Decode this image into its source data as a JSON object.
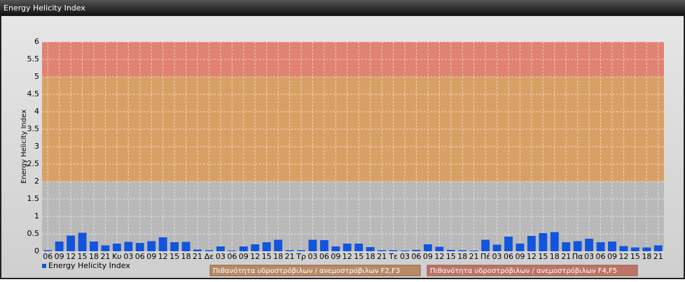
{
  "header": {
    "title": "Energy Helicity Index"
  },
  "chart_data": {
    "type": "bar",
    "y_label": "Energy Helicity Index",
    "categories": [
      "06",
      "09",
      "12",
      "15",
      "18",
      "21",
      "Κυ",
      "03",
      "06",
      "09",
      "12",
      "15",
      "18",
      "21",
      "Δε",
      "03",
      "06",
      "09",
      "12",
      "15",
      "18",
      "21",
      "Τρ",
      "03",
      "06",
      "09",
      "12",
      "15",
      "18",
      "21",
      "Τε",
      "03",
      "06",
      "09",
      "12",
      "15",
      "18",
      "21",
      "Πέ",
      "03",
      "06",
      "09",
      "12",
      "15",
      "18",
      "21",
      "Πα",
      "03",
      "06",
      "09",
      "12",
      "15",
      "18",
      "21"
    ],
    "series": [
      {
        "name": "Energy Helicity Index",
        "color": "#1155dd",
        "values": [
          0.03,
          0.28,
          0.45,
          0.53,
          0.28,
          0.17,
          0.22,
          0.27,
          0.24,
          0.29,
          0.4,
          0.26,
          0.27,
          0.05,
          0.03,
          0.14,
          0.02,
          0.14,
          0.2,
          0.26,
          0.33,
          0.03,
          0.03,
          0.33,
          0.32,
          0.14,
          0.22,
          0.22,
          0.12,
          0.03,
          0.03,
          0.02,
          0.04,
          0.2,
          0.13,
          0.04,
          0.03,
          0.02,
          0.33,
          0.19,
          0.42,
          0.22,
          0.44,
          0.52,
          0.55,
          0.26,
          0.29,
          0.36,
          0.26,
          0.28,
          0.15,
          0.11,
          0.11,
          0.17
        ]
      }
    ],
    "bands": [
      {
        "from": 0,
        "to": 2,
        "color": "#b9b9b9"
      },
      {
        "from": 2,
        "to": 5,
        "color": "#d9a066",
        "name": "Πιθανότητα υδροστρόβιλων / ανεμοστρόβιλων F2,F3",
        "legend_color": "#b98a66"
      },
      {
        "from": 5,
        "to": 6,
        "color": "#e08373",
        "name": "Πιθανότητα υδροστρόβιλων / ανεμοστρόβιλων F4,F5",
        "legend_color": "#bd7466"
      }
    ],
    "ylim": [
      0,
      6
    ],
    "yticks": [
      0,
      0.5,
      1,
      1.5,
      2,
      2.5,
      3,
      3.5,
      4,
      4.5,
      5,
      5.5,
      6
    ],
    "grid": true
  }
}
